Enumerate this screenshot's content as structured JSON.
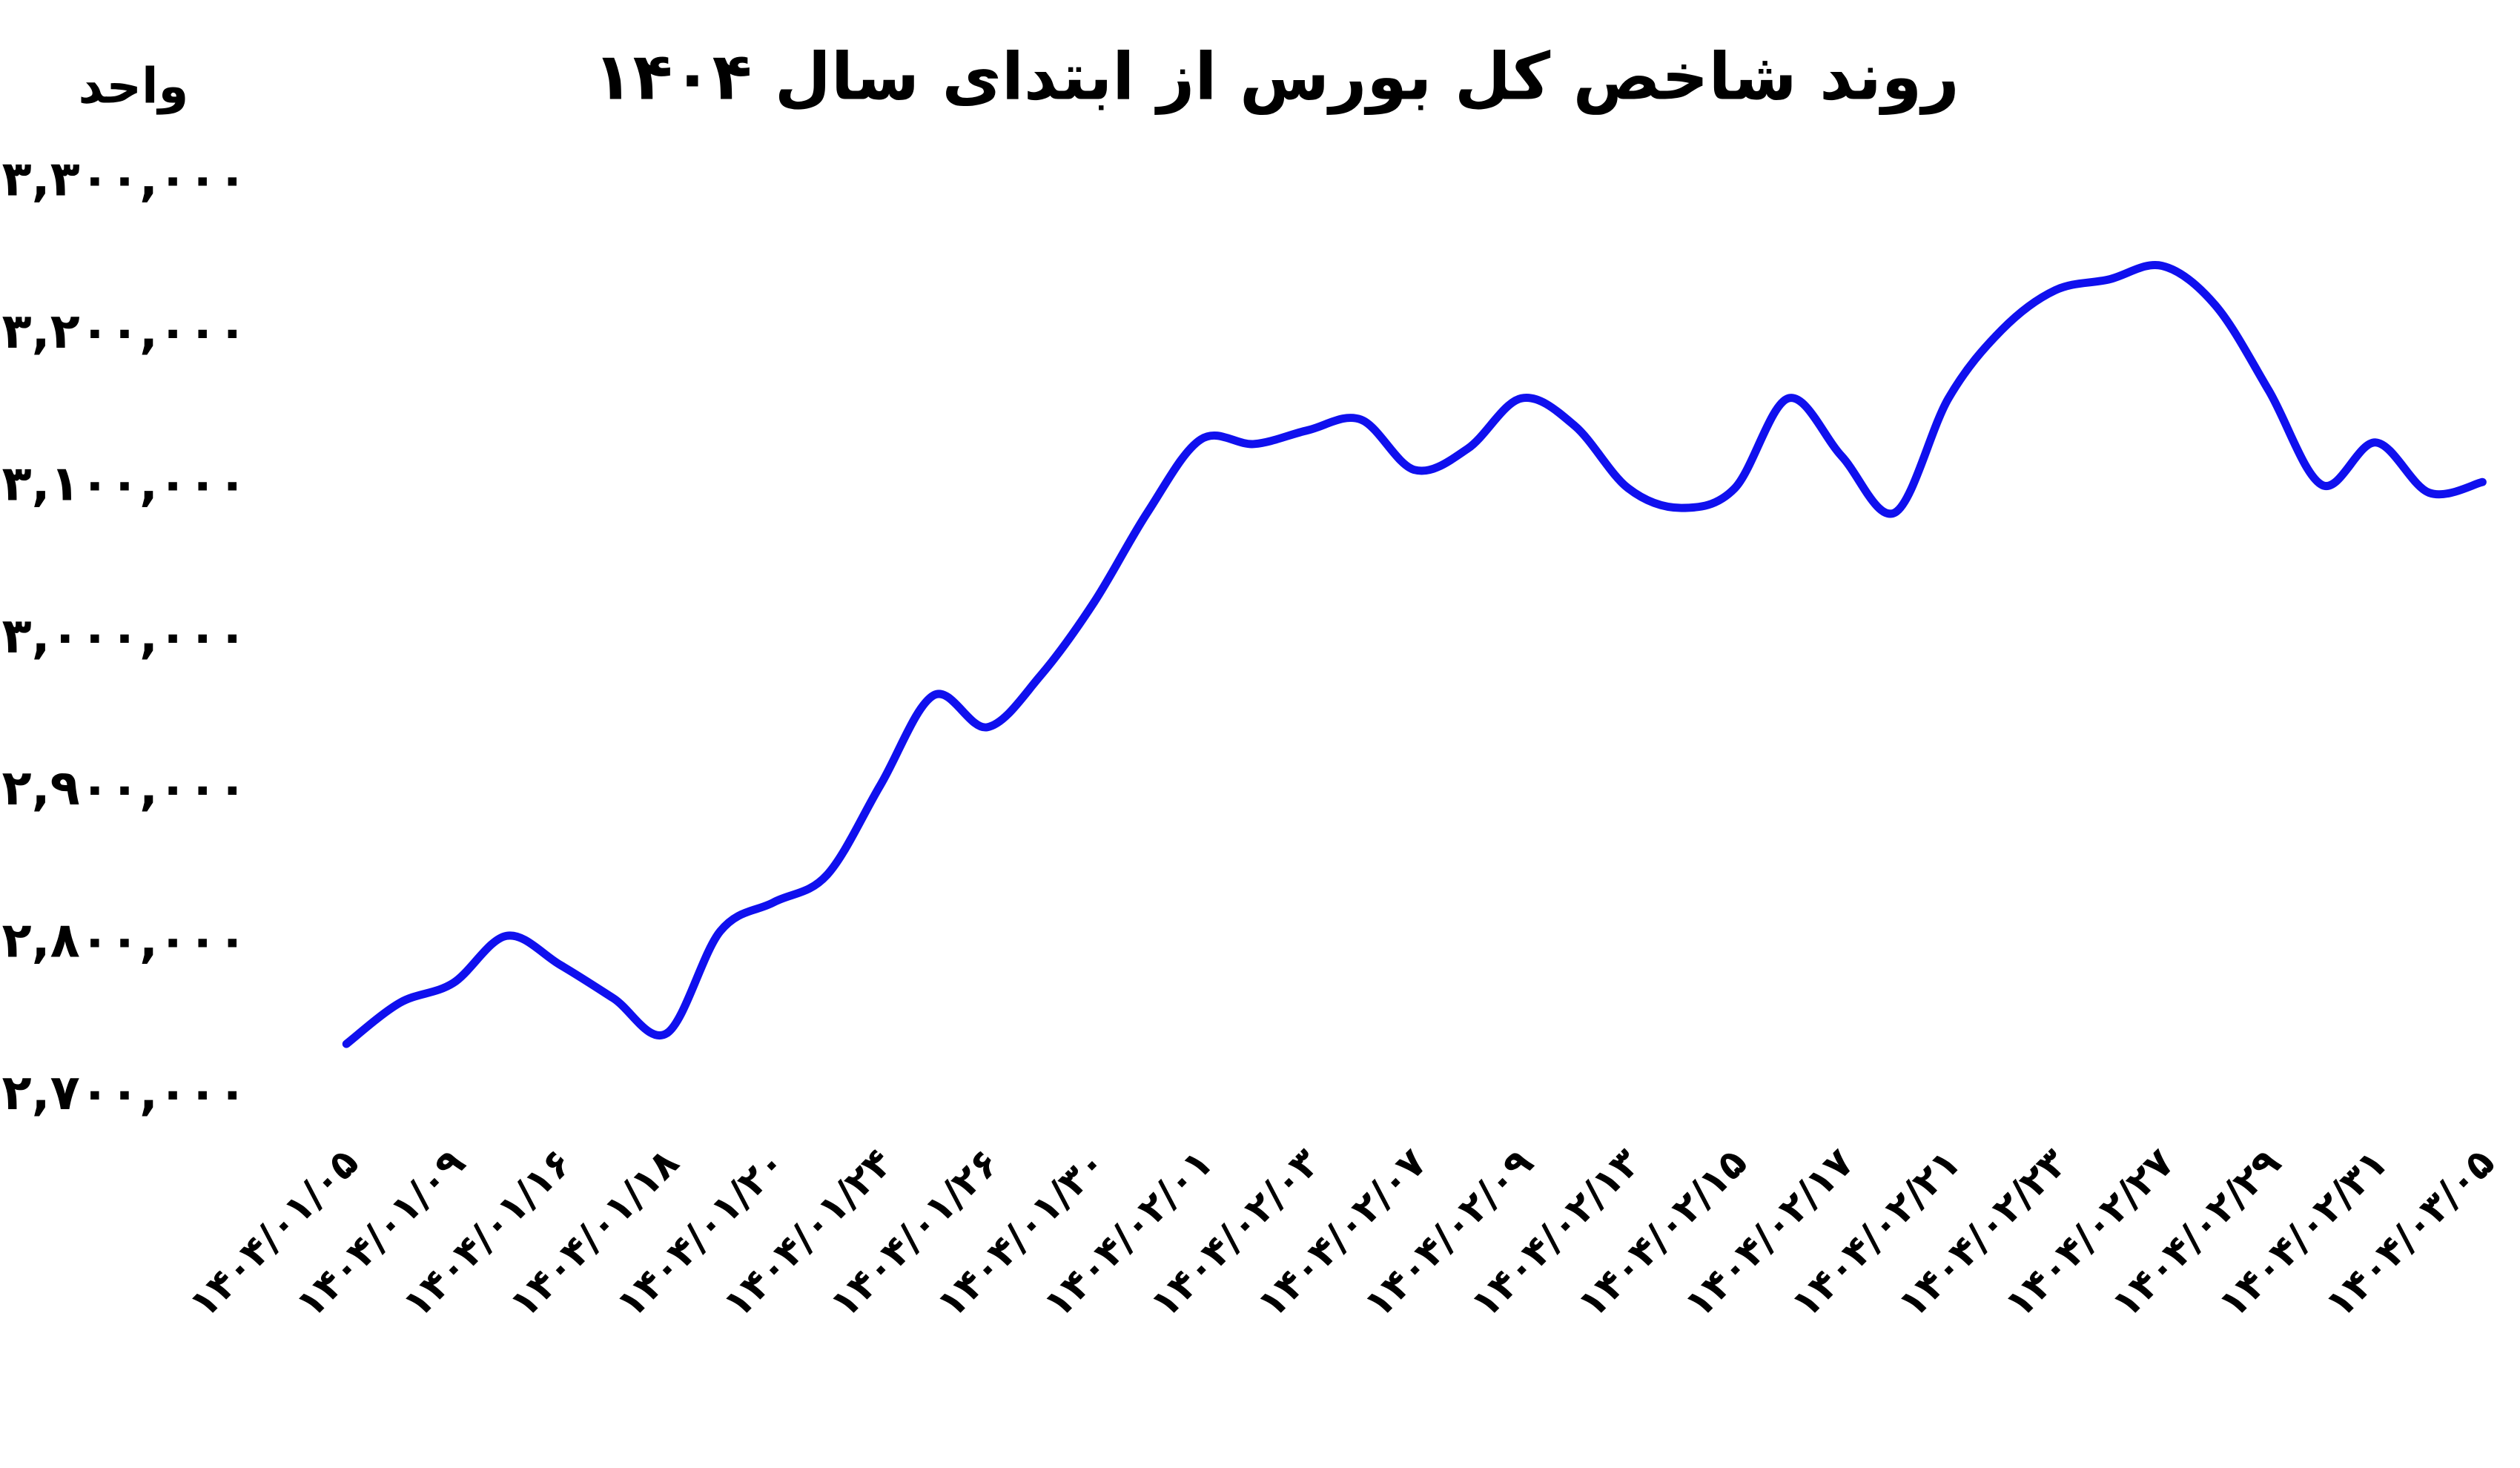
{
  "chart_data": {
    "type": "line",
    "title": "روند شاخص کل بورس از ابتدای سال ۱۴۰۴",
    "y_label": "واحد",
    "categories": [
      "۱۴۰۴/۰۱/۰۵",
      null,
      "۱۴۰۴/۰۱/۰۹",
      null,
      "۱۴۰۴/۰۱/۱۶",
      null,
      "۱۴۰۴/۰۱/۱۸",
      null,
      "۱۴۰۴/۰۱/۲۰",
      null,
      "۱۴۰۴/۰۱/۲۴",
      null,
      "۱۴۰۴/۰۱/۲۶",
      null,
      "۱۴۰۴/۰۱/۳۰",
      null,
      "۱۴۰۴/۰۲/۰۱",
      null,
      "۱۴۰۴/۰۲/۰۳",
      null,
      "۱۴۰۴/۰۲/۰۷",
      null,
      "۱۴۰۴/۰۲/۰۹",
      null,
      "۱۴۰۴/۰۲/۱۳",
      null,
      "۱۴۰۴/۰۲/۱۵",
      null,
      "۱۴۰۴/۰۲/۱۷",
      null,
      "۱۴۰۴/۰۲/۲۱",
      null,
      "۱۴۰۴/۰۲/۲۳",
      null,
      "۱۴۰۴/۰۲/۲۷",
      null,
      "۱۴۰۴/۰۲/۲۹",
      null,
      "۱۴۰۴/۰۲/۳۱",
      null,
      "۱۴۰۴/۰۳/۰۵"
    ],
    "series": [
      {
        "color": "#1010ee",
        "values": [
          2734000,
          2761000,
          2774000,
          2805000,
          2786000,
          2764000,
          2741000,
          2808000,
          2827000,
          2845000,
          2904000,
          2963000,
          2942000,
          2976000,
          3024000,
          3083000,
          3131000,
          3128000,
          3137000,
          3144000,
          3111000,
          3125000,
          3158000,
          3140000,
          3099000,
          3086000,
          3099000,
          3158000,
          3120000,
          3083000,
          3158000,
          3203000,
          3229000,
          3236000,
          3245000,
          3219000,
          3163000,
          3101000,
          3129000,
          3096000,
          3103000
        ]
      }
    ],
    "ylim": [
      2700000,
      3300000
    ],
    "yticks": [
      {
        "value": 2700000,
        "label": "۲,۷۰۰,۰۰۰"
      },
      {
        "value": 2800000,
        "label": "۲,۸۰۰,۰۰۰"
      },
      {
        "value": 2900000,
        "label": "۲,۹۰۰,۰۰۰"
      },
      {
        "value": 3000000,
        "label": "۳,۰۰۰,۰۰۰"
      },
      {
        "value": 3100000,
        "label": "۳,۱۰۰,۰۰۰"
      },
      {
        "value": 3200000,
        "label": "۳,۲۰۰,۰۰۰"
      },
      {
        "value": 3300000,
        "label": "۳,۳۰۰,۰۰۰"
      }
    ],
    "grid": false
  }
}
